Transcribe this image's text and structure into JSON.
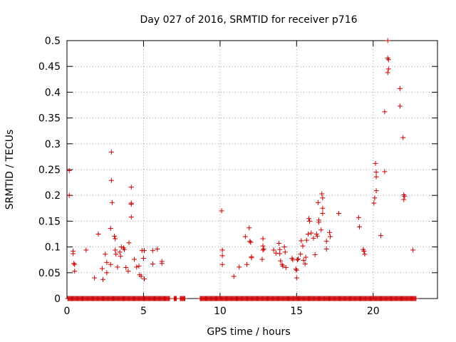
{
  "chart_data": {
    "type": "scatter",
    "title": "Day 027 of 2016, SRMTID for receiver p716",
    "xlabel": "GPS time / hours",
    "ylabel": "SRMTID / TECUs",
    "xlim": [
      0,
      24.2
    ],
    "ylim": [
      0,
      0.5
    ],
    "xticks": [
      0,
      5,
      10,
      15,
      20
    ],
    "xtick_labels": [
      "0",
      "5",
      "10",
      "15",
      "20"
    ],
    "yticks": [
      0,
      0.05,
      0.1,
      0.15,
      0.2,
      0.25,
      0.3,
      0.35,
      0.4,
      0.45,
      0.5
    ],
    "ytick_labels": [
      "0",
      "0.05",
      "0.1",
      "0.15",
      "0.2",
      "0.25",
      "0.3",
      "0.35",
      "0.4",
      "0.45",
      "0.5"
    ],
    "grid": true,
    "marker": "plus",
    "color": "#cc0000",
    "series": [
      {
        "name": "SRMTID",
        "points": [
          [
            0.15,
            0.248
          ],
          [
            0.15,
            0.2
          ],
          [
            0.4,
            0.092
          ],
          [
            0.4,
            0.087
          ],
          [
            0.45,
            0.068
          ],
          [
            0.5,
            0.066
          ],
          [
            0.5,
            0.053
          ],
          [
            1.25,
            0.094
          ],
          [
            1.8,
            0.04
          ],
          [
            2.05,
            0.125
          ],
          [
            2.3,
            0.058
          ],
          [
            2.35,
            0.037
          ],
          [
            2.5,
            0.086
          ],
          [
            2.6,
            0.05
          ],
          [
            2.6,
            0.07
          ],
          [
            2.85,
            0.136
          ],
          [
            2.85,
            0.066
          ],
          [
            2.9,
            0.284
          ],
          [
            2.9,
            0.229
          ],
          [
            2.95,
            0.186
          ],
          [
            3.1,
            0.121
          ],
          [
            3.15,
            0.116
          ],
          [
            3.15,
            0.094
          ],
          [
            3.2,
            0.086
          ],
          [
            3.3,
            0.061
          ],
          [
            3.45,
            0.09
          ],
          [
            3.5,
            0.082
          ],
          [
            3.55,
            0.1
          ],
          [
            3.7,
            0.098
          ],
          [
            3.75,
            0.095
          ],
          [
            3.85,
            0.06
          ],
          [
            4.0,
            0.053
          ],
          [
            4.05,
            0.108
          ],
          [
            4.2,
            0.216
          ],
          [
            4.2,
            0.185
          ],
          [
            4.2,
            0.183
          ],
          [
            4.2,
            0.158
          ],
          [
            4.4,
            0.076
          ],
          [
            4.55,
            0.061
          ],
          [
            4.7,
            0.063
          ],
          [
            4.75,
            0.046
          ],
          [
            4.85,
            0.043
          ],
          [
            4.9,
            0.093
          ],
          [
            5.0,
            0.078
          ],
          [
            5.05,
            0.093
          ],
          [
            5.05,
            0.038
          ],
          [
            5.6,
            0.067
          ],
          [
            5.6,
            0.093
          ],
          [
            5.9,
            0.096
          ],
          [
            6.2,
            0.072
          ],
          [
            6.2,
            0.068
          ],
          [
            10.1,
            0.17
          ],
          [
            10.15,
            0.094
          ],
          [
            10.15,
            0.083
          ],
          [
            10.15,
            0.066
          ],
          [
            10.9,
            0.043
          ],
          [
            11.25,
            0.061
          ],
          [
            11.65,
            0.12
          ],
          [
            11.75,
            0.066
          ],
          [
            11.9,
            0.137
          ],
          [
            11.95,
            0.111
          ],
          [
            12.0,
            0.109
          ],
          [
            12.05,
            0.081
          ],
          [
            12.05,
            0.079
          ],
          [
            12.8,
            0.116
          ],
          [
            12.8,
            0.102
          ],
          [
            12.85,
            0.096
          ],
          [
            12.8,
            0.094
          ],
          [
            12.75,
            0.076
          ],
          [
            13.5,
            0.094
          ],
          [
            13.65,
            0.088
          ],
          [
            13.85,
            0.107
          ],
          [
            13.9,
            0.095
          ],
          [
            13.9,
            0.087
          ],
          [
            13.95,
            0.073
          ],
          [
            14.05,
            0.066
          ],
          [
            14.1,
            0.063
          ],
          [
            14.2,
            0.1
          ],
          [
            14.25,
            0.09
          ],
          [
            14.3,
            0.06
          ],
          [
            14.7,
            0.078
          ],
          [
            14.75,
            0.075
          ],
          [
            14.95,
            0.057
          ],
          [
            15.0,
            0.055
          ],
          [
            15.0,
            0.04
          ],
          [
            15.05,
            0.075
          ],
          [
            15.1,
            0.077
          ],
          [
            15.25,
            0.086
          ],
          [
            15.3,
            0.112
          ],
          [
            15.4,
            0.102
          ],
          [
            15.45,
            0.074
          ],
          [
            15.55,
            0.067
          ],
          [
            15.6,
            0.08
          ],
          [
            15.65,
            0.113
          ],
          [
            15.75,
            0.125
          ],
          [
            15.8,
            0.155
          ],
          [
            15.85,
            0.15
          ],
          [
            15.95,
            0.127
          ],
          [
            16.1,
            0.117
          ],
          [
            16.2,
            0.085
          ],
          [
            16.3,
            0.125
          ],
          [
            16.35,
            0.121
          ],
          [
            16.4,
            0.186
          ],
          [
            16.45,
            0.152
          ],
          [
            16.45,
            0.148
          ],
          [
            16.6,
            0.133
          ],
          [
            16.65,
            0.203
          ],
          [
            16.7,
            0.195
          ],
          [
            16.7,
            0.175
          ],
          [
            16.7,
            0.165
          ],
          [
            16.95,
            0.111
          ],
          [
            16.95,
            0.096
          ],
          [
            17.15,
            0.128
          ],
          [
            17.2,
            0.12
          ],
          [
            17.75,
            0.165
          ],
          [
            19.05,
            0.157
          ],
          [
            19.1,
            0.139
          ],
          [
            19.35,
            0.095
          ],
          [
            19.4,
            0.092
          ],
          [
            19.45,
            0.086
          ],
          [
            20.05,
            0.185
          ],
          [
            20.1,
            0.195
          ],
          [
            20.15,
            0.262
          ],
          [
            20.2,
            0.245
          ],
          [
            20.2,
            0.236
          ],
          [
            20.2,
            0.209
          ],
          [
            20.5,
            0.122
          ],
          [
            20.75,
            0.246
          ],
          [
            20.75,
            0.362
          ],
          [
            20.95,
            0.5
          ],
          [
            20.95,
            0.466
          ],
          [
            21.0,
            0.463
          ],
          [
            21.0,
            0.445
          ],
          [
            20.95,
            0.438
          ],
          [
            21.75,
            0.407
          ],
          [
            21.75,
            0.373
          ],
          [
            21.95,
            0.312
          ],
          [
            22.0,
            0.201
          ],
          [
            22.05,
            0.198
          ],
          [
            22.0,
            0.192
          ],
          [
            22.6,
            0.094
          ]
        ],
        "zero_times": [
          0.05,
          0.1,
          0.15,
          0.2,
          0.25,
          0.3,
          0.35,
          0.4,
          0.45,
          0.5,
          0.55,
          0.6,
          0.65,
          0.7,
          0.75,
          0.8,
          0.85,
          0.9,
          0.95,
          1.0,
          1.05,
          1.1,
          1.15,
          1.2,
          1.25,
          1.3,
          1.35,
          1.4,
          1.45,
          1.5,
          1.55,
          1.6,
          1.65,
          1.7,
          1.75,
          1.8,
          1.85,
          1.9,
          1.95,
          2.0,
          2.05,
          2.1,
          2.15,
          2.2,
          2.25,
          2.3,
          2.35,
          2.4,
          2.45,
          2.5,
          2.55,
          2.6,
          2.65,
          2.7,
          2.75,
          2.8,
          2.85,
          2.9,
          2.95,
          3.0,
          3.05,
          3.1,
          3.15,
          3.2,
          3.25,
          3.3,
          3.35,
          3.4,
          3.45,
          3.5,
          3.55,
          3.6,
          3.65,
          3.7,
          3.75,
          3.8,
          3.85,
          3.9,
          3.95,
          4.0,
          4.05,
          4.1,
          4.15,
          4.2,
          4.25,
          4.3,
          4.35,
          4.4,
          4.45,
          4.5,
          4.55,
          4.6,
          4.65,
          4.7,
          4.75,
          4.8,
          4.85,
          4.9,
          4.95,
          5.0,
          5.05,
          5.1,
          5.15,
          5.2,
          5.25,
          5.3,
          5.35,
          5.4,
          5.45,
          5.5,
          5.55,
          5.6,
          5.65,
          5.7,
          5.75,
          5.8,
          5.85,
          5.9,
          5.95,
          6.0,
          6.05,
          6.1,
          6.15,
          6.2,
          6.25,
          6.3,
          6.35,
          6.4,
          6.45,
          6.5,
          6.55,
          6.6,
          6.65,
          6.7,
          7.0,
          7.05,
          7.1,
          7.15,
          7.4,
          7.45,
          7.5,
          7.55,
          7.6,
          7.65,
          7.7,
          8.7,
          8.75,
          8.8,
          8.85,
          8.9,
          8.95,
          9.0,
          9.05,
          9.1,
          9.15,
          9.2,
          9.25,
          9.3,
          9.35,
          9.4,
          9.45,
          9.5,
          9.55,
          9.6,
          9.65,
          9.7,
          9.75,
          9.8,
          9.85,
          9.9,
          9.95,
          10.0,
          10.05,
          10.1,
          10.15,
          10.2,
          10.25,
          10.3,
          10.35,
          10.4,
          10.45,
          10.5,
          10.55,
          10.6,
          10.65,
          10.7,
          10.75,
          10.8,
          10.85,
          10.9,
          10.95,
          11.0,
          11.05,
          11.1,
          11.15,
          11.2,
          11.25,
          11.3,
          11.35,
          11.4,
          11.45,
          11.5,
          11.55,
          11.6,
          11.65,
          11.7,
          11.75,
          11.8,
          11.85,
          11.9,
          11.95,
          12.0,
          12.05,
          12.1,
          12.15,
          12.2,
          12.25,
          12.3,
          12.35,
          12.4,
          12.45,
          12.5,
          12.55,
          12.6,
          12.65,
          12.7,
          12.75,
          12.8,
          12.85,
          12.9,
          12.95,
          13.0,
          13.05,
          13.1,
          13.15,
          13.2,
          13.25,
          13.3,
          13.35,
          13.4,
          13.45,
          13.5,
          13.55,
          13.6,
          13.65,
          13.7,
          13.75,
          13.8,
          13.85,
          13.9,
          13.95,
          14.0,
          14.05,
          14.1,
          14.15,
          14.2,
          14.25,
          14.3,
          14.35,
          14.4,
          14.45,
          14.5,
          14.55,
          14.6,
          14.65,
          14.7,
          14.75,
          14.8,
          14.85,
          14.9,
          14.95,
          15.0,
          15.05,
          15.1,
          15.15,
          15.2,
          15.25,
          15.3,
          15.35,
          15.4,
          15.45,
          15.5,
          15.55,
          15.6,
          15.65,
          15.7,
          15.75,
          15.8,
          15.85,
          15.9,
          15.95,
          16.0,
          16.05,
          16.1,
          16.15,
          16.2,
          16.25,
          16.3,
          16.35,
          16.4,
          16.45,
          16.5,
          16.55,
          16.6,
          16.65,
          16.7,
          16.75,
          16.8,
          16.85,
          16.9,
          16.95,
          17.0,
          17.05,
          17.1,
          17.15,
          17.2,
          17.25,
          17.3,
          17.35,
          17.4,
          17.45,
          17.5,
          17.55,
          17.6,
          17.65,
          17.7,
          17.75,
          17.8,
          17.85,
          17.9,
          17.95,
          18.0,
          18.05,
          18.1,
          18.15,
          18.2,
          18.25,
          18.3,
          18.35,
          18.4,
          18.45,
          18.5,
          18.55,
          18.6,
          18.65,
          18.7,
          18.75,
          18.8,
          18.85,
          18.9,
          18.95,
          19.0,
          19.05,
          19.1,
          19.15,
          19.2,
          19.25,
          19.3,
          19.35,
          19.4,
          19.45,
          19.5,
          19.55,
          19.6,
          19.65,
          19.7,
          19.75,
          19.8,
          19.85,
          19.9,
          19.95,
          20.0,
          20.05,
          20.1,
          20.15,
          20.2,
          20.25,
          20.3,
          20.35,
          20.4,
          20.45,
          20.5,
          20.55,
          20.6,
          20.65,
          20.7,
          20.75,
          20.8,
          20.85,
          20.9,
          20.95,
          21.0,
          21.05,
          21.1,
          21.15,
          21.2,
          21.25,
          21.3,
          21.35,
          21.4,
          21.45,
          21.5,
          21.55,
          21.6,
          21.65,
          21.7,
          21.75,
          21.8,
          21.85,
          21.9,
          21.95,
          22.0,
          22.05,
          22.1,
          22.15,
          22.2,
          22.25,
          22.3,
          22.35,
          22.4,
          22.45,
          22.5,
          22.55,
          22.6,
          22.65,
          22.7,
          22.75,
          22.8
        ]
      }
    ]
  }
}
